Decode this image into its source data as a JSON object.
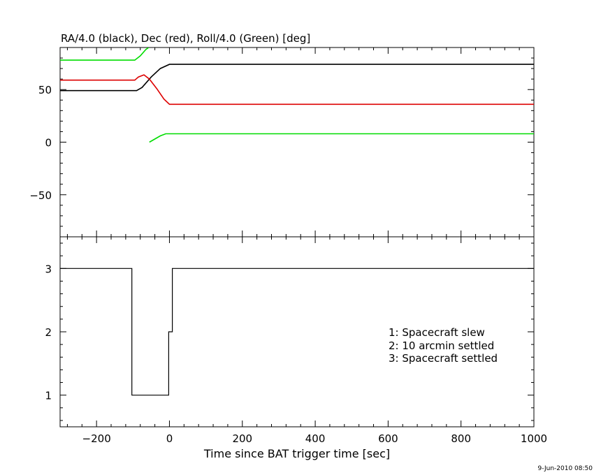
{
  "chart_data": [
    {
      "type": "line",
      "title": "RA/4.0 (black), Dec (red), Roll/4.0 (Green) [deg]",
      "xlim": [
        -300,
        1000
      ],
      "ylim": [
        -90,
        90
      ],
      "yticks": [
        50,
        0,
        -50
      ],
      "ytick_labels": [
        "50",
        "0",
        "−50"
      ],
      "series": [
        {
          "color": "#000000",
          "x": [
            -300,
            -90,
            -75,
            -50,
            -25,
            0,
            1000
          ],
          "y": [
            49,
            49,
            52,
            62,
            70,
            74,
            74
          ]
        },
        {
          "color": "#dd0000",
          "x": [
            -300,
            -95,
            -85,
            -70,
            -55,
            -35,
            -15,
            0,
            1000
          ],
          "y": [
            59,
            59,
            62,
            64,
            60,
            51,
            41,
            36,
            36
          ]
        },
        {
          "color": "#00dd00",
          "x": [
            -300,
            -95,
            -80,
            -65,
            -57
          ],
          "y": [
            78,
            78,
            82,
            88,
            90
          ]
        },
        {
          "color": "#00dd00",
          "x": [
            -55,
            -40,
            -25,
            -10,
            0,
            1000
          ],
          "y": [
            0,
            3,
            6,
            8,
            8,
            8
          ]
        }
      ]
    },
    {
      "type": "line",
      "xlim": [
        -300,
        1000
      ],
      "ylim": [
        0.5,
        3.5
      ],
      "yticks": [
        3,
        2,
        1
      ],
      "ytick_labels": [
        "3",
        "2",
        "1"
      ],
      "xticks": [
        -200,
        0,
        200,
        400,
        600,
        800,
        1000
      ],
      "xtick_labels": [
        "−200",
        "0",
        "200",
        "400",
        "600",
        "800",
        "1000"
      ],
      "xlabel": "Time since BAT trigger time [sec]",
      "series": [
        {
          "color": "#000000",
          "x": [
            -300,
            -103,
            -103,
            -2,
            -2,
            8,
            8,
            1000
          ],
          "y": [
            3,
            3,
            1,
            1,
            2,
            2,
            3,
            3
          ]
        }
      ],
      "annotations": [
        "1: Spacecraft slew",
        "2: 10 arcmin settled",
        "3: Spacecraft settled"
      ]
    }
  ],
  "footer": {
    "timestamp": "9-Jun-2010 08:50"
  }
}
